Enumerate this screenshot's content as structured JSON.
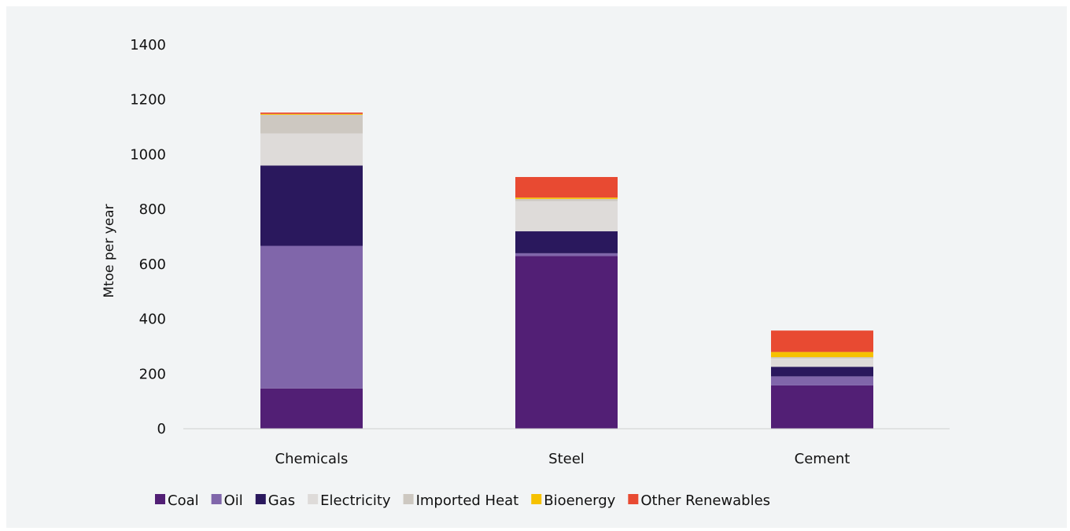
{
  "chart_data": {
    "type": "bar",
    "stacked": true,
    "title": "",
    "xlabel": "",
    "ylabel": "Mtoe per year",
    "ylim": [
      0,
      1400
    ],
    "yticks": [
      0,
      200,
      400,
      600,
      800,
      1000,
      1200,
      1400
    ],
    "grid": false,
    "legend_position": "bottom",
    "categories": [
      "Chemicals",
      "Steel",
      "Cement"
    ],
    "series": [
      {
        "name": "Coal",
        "color": "#521f75",
        "values": [
          147,
          630,
          158
        ]
      },
      {
        "name": "Oil",
        "color": "#8066aa",
        "values": [
          520,
          10,
          33
        ]
      },
      {
        "name": "Gas",
        "color": "#2a185d",
        "values": [
          293,
          80,
          35
        ]
      },
      {
        "name": "Electricity",
        "color": "#dedbd9",
        "values": [
          117,
          110,
          30
        ]
      },
      {
        "name": "Imported Heat",
        "color": "#cdc8c1",
        "values": [
          68,
          8,
          5
        ]
      },
      {
        "name": "Bioenergy",
        "color": "#f6c100",
        "values": [
          3,
          5,
          19
        ]
      },
      {
        "name": "Other Renewables",
        "color": "#e84a32",
        "values": [
          5,
          75,
          78
        ]
      }
    ]
  }
}
